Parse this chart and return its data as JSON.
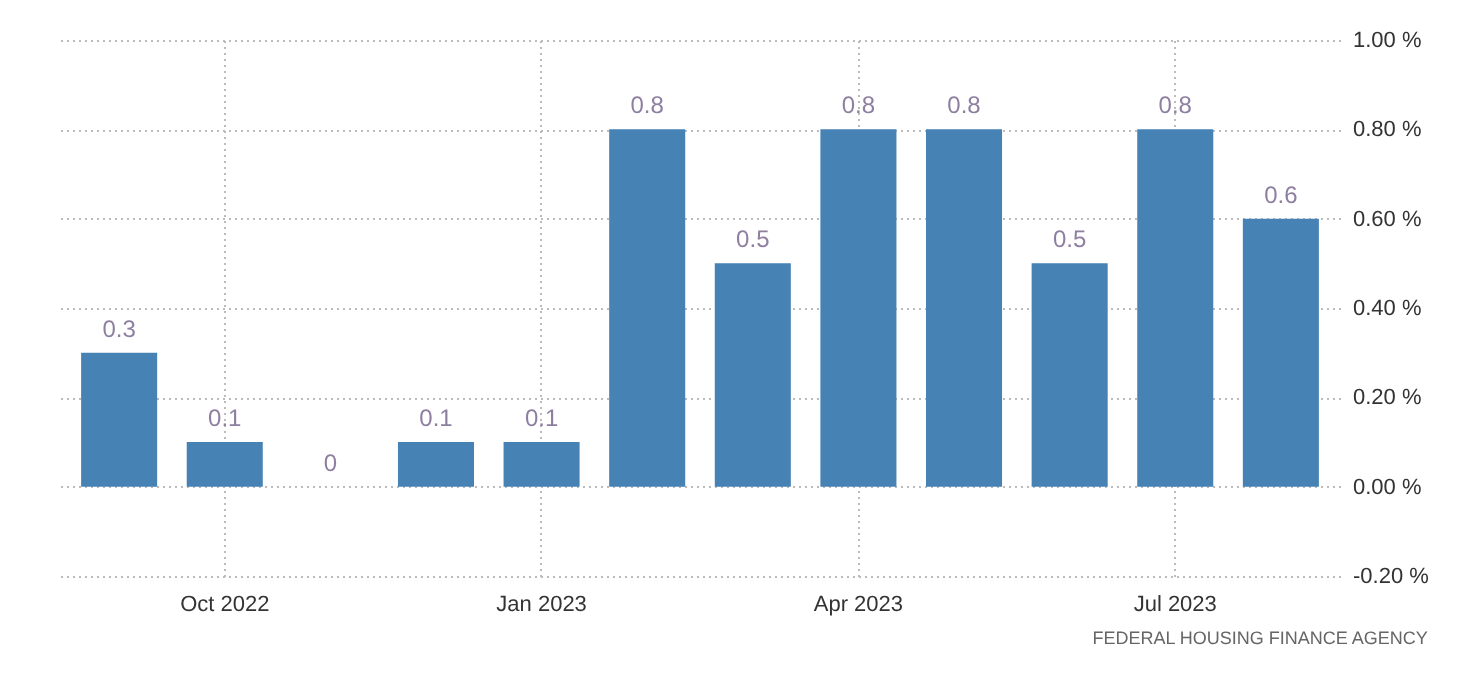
{
  "chart_data": {
    "type": "bar",
    "categories": [
      null,
      "Oct 2022",
      null,
      null,
      "Jan 2023",
      null,
      null,
      "Apr 2023",
      null,
      null,
      "Jul 2023",
      null
    ],
    "values": [
      0.3,
      0.1,
      0,
      0.1,
      0.1,
      0.8,
      0.5,
      0.8,
      0.8,
      0.5,
      0.8,
      0.6
    ],
    "color": "#4682b4",
    "ylim": [
      -0.2,
      1.0
    ],
    "yticks": [
      {
        "value": -0.2,
        "label": "-0.20 %"
      },
      {
        "value": 0,
        "label": "0.00 %"
      },
      {
        "value": 0.2,
        "label": "0.20 %"
      },
      {
        "value": 0.4,
        "label": "0.40 %"
      },
      {
        "value": 0.6,
        "label": "0.60 %"
      },
      {
        "value": 0.8,
        "label": "0.80 %"
      },
      {
        "value": 1.0,
        "label": "1.00 %"
      }
    ],
    "grid": true,
    "data_labels": true,
    "annotations": [
      "FEDERAL HOUSING FINANCE AGENCY"
    ]
  }
}
